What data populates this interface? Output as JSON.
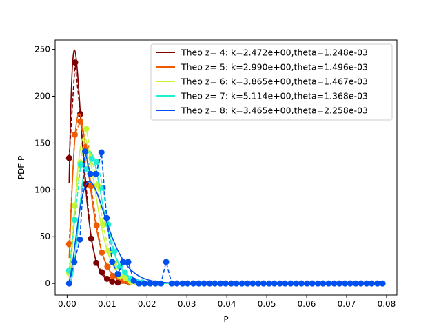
{
  "chart_data": {
    "type": "line",
    "xlabel": "P",
    "ylabel": "PDF P",
    "xlim": [
      -0.003,
      0.0826
    ],
    "ylim": [
      -12.4,
      260
    ],
    "xticks": [
      {
        "v": 0.0,
        "label": "0.00"
      },
      {
        "v": 0.01,
        "label": "0.01"
      },
      {
        "v": 0.02,
        "label": "0.02"
      },
      {
        "v": 0.03,
        "label": "0.03"
      },
      {
        "v": 0.04,
        "label": "0.04"
      },
      {
        "v": 0.05,
        "label": "0.05"
      },
      {
        "v": 0.06,
        "label": "0.06"
      },
      {
        "v": 0.07,
        "label": "0.07"
      },
      {
        "v": 0.08,
        "label": "0.08"
      }
    ],
    "yticks": [
      {
        "v": 0,
        "label": "0"
      },
      {
        "v": 50,
        "label": "50"
      },
      {
        "v": 100,
        "label": "100"
      },
      {
        "v": 150,
        "label": "150"
      },
      {
        "v": 200,
        "label": "200"
      },
      {
        "v": 250,
        "label": "250"
      }
    ],
    "grid": false,
    "legend_position": "top-right",
    "series": [
      {
        "name": "Theo z= 4: k=2.472e+00,theta=1.248e-03",
        "color": "#7f0000",
        "k": 2.472,
        "theta": 0.001248,
        "points": [
          [
            0.0005,
            134
          ],
          [
            0.002,
            236
          ],
          [
            0.0033,
            181
          ],
          [
            0.0047,
            106
          ],
          [
            0.006,
            48
          ],
          [
            0.0073,
            22
          ],
          [
            0.0087,
            12
          ],
          [
            0.01,
            5
          ],
          [
            0.0113,
            2
          ],
          [
            0.0127,
            1
          ]
        ]
      },
      {
        "name": "Theo z= 5: k=2.990e+00,theta=1.496e-03",
        "color": "#ef5a00",
        "k": 2.99,
        "theta": 0.001496,
        "points": [
          [
            0.0005,
            42
          ],
          [
            0.0019,
            159
          ],
          [
            0.0033,
            173
          ],
          [
            0.0047,
            146
          ],
          [
            0.006,
            104
          ],
          [
            0.0074,
            62
          ],
          [
            0.0087,
            33
          ],
          [
            0.0101,
            18
          ],
          [
            0.0114,
            8
          ],
          [
            0.0128,
            7
          ],
          [
            0.0142,
            3
          ],
          [
            0.0155,
            1
          ]
        ]
      },
      {
        "name": "Theo z= 6: k=3.865e+00,theta=1.467e-03",
        "color": "#c7f536",
        "k": 3.865,
        "theta": 0.001467,
        "points": [
          [
            0.0005,
            11
          ],
          [
            0.0019,
            83
          ],
          [
            0.0033,
            129
          ],
          [
            0.0048,
            165
          ],
          [
            0.0061,
            135
          ],
          [
            0.0076,
            105
          ],
          [
            0.009,
            63
          ],
          [
            0.0104,
            35
          ],
          [
            0.0118,
            22
          ],
          [
            0.0132,
            8
          ],
          [
            0.0146,
            6
          ],
          [
            0.016,
            2
          ],
          [
            0.0175,
            1
          ]
        ]
      },
      {
        "name": "Theo z= 7: k=5.114e+00,theta=1.368e-03",
        "color": "#20f0d0",
        "k": 5.114,
        "theta": 0.001368,
        "points": [
          [
            0.0005,
            14
          ],
          [
            0.0019,
            68
          ],
          [
            0.0034,
            127
          ],
          [
            0.0048,
            122
          ],
          [
            0.0062,
            133
          ],
          [
            0.0075,
            130
          ],
          [
            0.009,
            102
          ],
          [
            0.0103,
            63
          ],
          [
            0.0118,
            34
          ],
          [
            0.0132,
            18
          ],
          [
            0.0145,
            12
          ],
          [
            0.016,
            5
          ],
          [
            0.0175,
            2
          ],
          [
            0.0188,
            1
          ]
        ]
      },
      {
        "name": "Theo z= 8: k=3.465e+00,theta=2.258e-03",
        "color": "#0050ef",
        "k": 3.465,
        "theta": 0.002258,
        "points": [
          [
            0.0005,
            0
          ],
          [
            0.0018,
            23
          ],
          [
            0.0032,
            47
          ],
          [
            0.0045,
            141
          ],
          [
            0.0058,
            117
          ],
          [
            0.0072,
            117
          ],
          [
            0.0086,
            140
          ],
          [
            0.0099,
            70
          ],
          [
            0.0113,
            23
          ],
          [
            0.0127,
            10
          ],
          [
            0.014,
            23
          ],
          [
            0.0153,
            23
          ],
          [
            0.0167,
            3
          ],
          [
            0.018,
            0
          ],
          [
            0.0194,
            0
          ],
          [
            0.0208,
            0
          ],
          [
            0.0221,
            0
          ],
          [
            0.0235,
            0
          ],
          [
            0.0248,
            23
          ],
          [
            0.0262,
            0
          ],
          [
            0.0275,
            0
          ],
          [
            0.0289,
            0
          ],
          [
            0.0302,
            0
          ],
          [
            0.0316,
            0
          ],
          [
            0.033,
            0
          ],
          [
            0.0343,
            0
          ],
          [
            0.0357,
            0
          ],
          [
            0.037,
            0
          ],
          [
            0.0384,
            0
          ],
          [
            0.0397,
            0
          ],
          [
            0.0411,
            0
          ],
          [
            0.0424,
            0
          ],
          [
            0.0438,
            0
          ],
          [
            0.0452,
            0
          ],
          [
            0.0465,
            0
          ],
          [
            0.0479,
            0
          ],
          [
            0.0492,
            0
          ],
          [
            0.0506,
            0
          ],
          [
            0.0519,
            0
          ],
          [
            0.0533,
            0
          ],
          [
            0.0546,
            0
          ],
          [
            0.056,
            0
          ],
          [
            0.0574,
            0
          ],
          [
            0.0587,
            0
          ],
          [
            0.0601,
            0
          ],
          [
            0.0614,
            0
          ],
          [
            0.0628,
            0
          ],
          [
            0.0641,
            0
          ],
          [
            0.0655,
            0
          ],
          [
            0.0669,
            0
          ],
          [
            0.0682,
            0
          ],
          [
            0.0696,
            0
          ],
          [
            0.0709,
            0
          ],
          [
            0.0723,
            0
          ],
          [
            0.0736,
            0
          ],
          [
            0.075,
            0
          ],
          [
            0.0763,
            0
          ],
          [
            0.0777,
            0
          ],
          [
            0.079,
            0
          ]
        ]
      }
    ]
  }
}
